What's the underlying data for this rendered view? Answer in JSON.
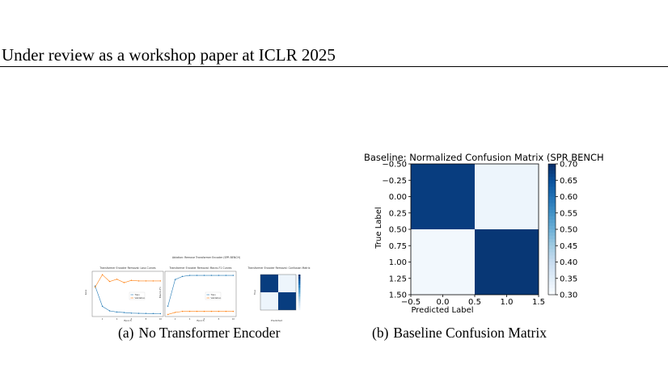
{
  "header": {
    "text": "Under review as a workshop paper at ICLR 2025"
  },
  "figure_a": {
    "suptitle": "Ablation: Remove Transformer Encoder (SPR BENCH)",
    "loss_title": "Transformer Encoder Removal: Loss Curves",
    "f1_title": "Transformer Encoder Removal: Macro-F1 Curves",
    "cm_title": "Transformer Encoder Removal: Confusion Matrix",
    "epoch_label": "Epoch",
    "loss_ylabel": "Loss",
    "f1_ylabel": "Macro-F1",
    "cm_xlabel": "Predicted",
    "cm_ylabel": "True",
    "legend_train": "Train",
    "legend_val": "Validation",
    "caption_label": "(a)",
    "caption_text": "No Transformer Encoder"
  },
  "figure_b": {
    "caption_label": "(b)",
    "caption_text": "Baseline Confusion Matrix"
  },
  "chart_data": [
    {
      "type": "line",
      "title": "Transformer Encoder Removal: Loss Curves",
      "xlabel": "Epoch",
      "ylabel": "Loss",
      "x": [
        1,
        2,
        3,
        4,
        5,
        6,
        7,
        8,
        9,
        10
      ],
      "xticks": [
        2,
        4,
        6,
        8,
        10
      ],
      "xlim": [
        0.6,
        10.4
      ],
      "ylim": [
        0.35,
        0.75
      ],
      "series": [
        {
          "name": "Train",
          "color": "#1f77b4",
          "values": [
            0.62,
            0.44,
            0.4,
            0.39,
            0.385,
            0.38,
            0.378,
            0.377,
            0.376,
            0.375
          ]
        },
        {
          "name": "Validation",
          "color": "#ff7f0e",
          "values": [
            0.61,
            0.72,
            0.66,
            0.68,
            0.65,
            0.67,
            0.665,
            0.665,
            0.665,
            0.665
          ]
        }
      ]
    },
    {
      "type": "line",
      "title": "Transformer Encoder Removal: Macro-F1 Curves",
      "xlabel": "Epoch",
      "ylabel": "Macro-F1",
      "x": [
        1,
        2,
        3,
        4,
        5,
        6,
        7,
        8,
        9,
        10
      ],
      "xticks": [
        2,
        4,
        6,
        8,
        10
      ],
      "xlim": [
        0.6,
        10.4
      ],
      "ylim": [
        0.6,
        0.82
      ],
      "series": [
        {
          "name": "Train",
          "color": "#1f77b4",
          "values": [
            0.65,
            0.78,
            0.795,
            0.8,
            0.8,
            0.8,
            0.8,
            0.8,
            0.8,
            0.8
          ]
        },
        {
          "name": "Validation",
          "color": "#ff7f0e",
          "values": [
            0.61,
            0.62,
            0.625,
            0.625,
            0.625,
            0.625,
            0.625,
            0.625,
            0.625,
            0.625
          ]
        }
      ]
    },
    {
      "type": "heatmap",
      "title": "Transformer Encoder Removal: Confusion Matrix",
      "xlabel": "Predicted",
      "ylabel": "True",
      "values": [
        [
          0.68,
          0.32
        ],
        [
          0.32,
          0.68
        ]
      ],
      "colormap": "Blues"
    },
    {
      "type": "heatmap",
      "title": "Baseline: Normalized Confusion Matrix (SPR BENCH",
      "xlabel": "Predicted Label",
      "ylabel": "True Label",
      "values": [
        [
          0.68,
          0.32
        ],
        [
          0.31,
          0.69
        ]
      ],
      "xticks": [
        "−0.5",
        "0.0",
        "0.5",
        "1.0",
        "1.5"
      ],
      "yticks": [
        "−0.50",
        "−0.25",
        "0.00",
        "0.25",
        "0.50",
        "0.75",
        "1.00",
        "1.25",
        "1.50"
      ],
      "xlim": [
        -0.5,
        1.5
      ],
      "ylim": [
        1.5,
        -0.5
      ],
      "colorbar": {
        "min": 0.3,
        "max": 0.7,
        "ticks": [
          "0.70",
          "0.65",
          "0.60",
          "0.55",
          "0.50",
          "0.45",
          "0.40",
          "0.35",
          "0.30"
        ]
      },
      "colormap": "Blues"
    }
  ]
}
